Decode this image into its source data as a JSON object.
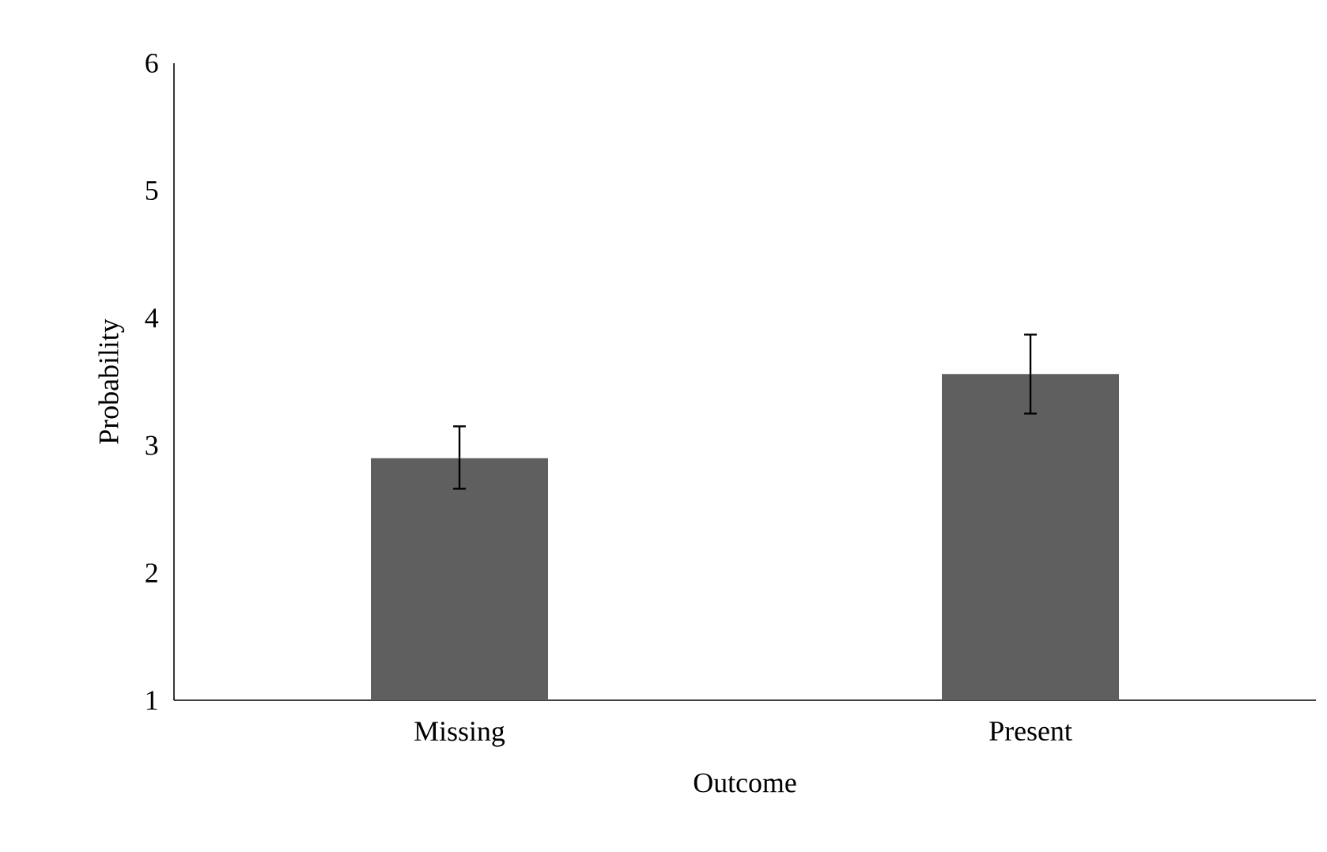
{
  "chart_data": {
    "type": "bar",
    "xlabel": "Outcome",
    "ylabel": "Probability",
    "categories": [
      "Missing",
      "Present"
    ],
    "values": [
      2.9,
      3.56
    ],
    "errors": [
      [
        2.66,
        3.15
      ],
      [
        3.25,
        3.87
      ]
    ],
    "color": "#5f5f5f",
    "ylim": [
      1,
      6
    ],
    "yticks": [
      1,
      2,
      3,
      4,
      5,
      6
    ]
  }
}
